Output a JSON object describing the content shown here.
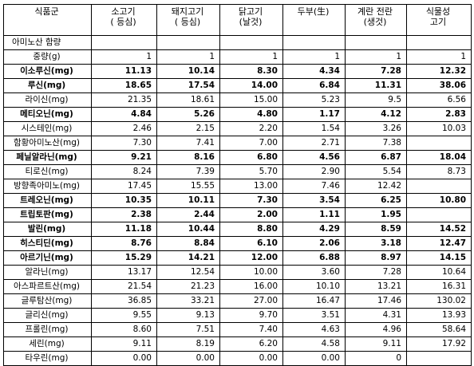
{
  "header": {
    "group": "식품군",
    "columns": [
      {
        "line1": "소고기",
        "line2": "( 등심)"
      },
      {
        "line1": "돼지고기",
        "line2": "( 등심)"
      },
      {
        "line1": "닭고기",
        "line2": "(날것)"
      },
      {
        "line1": "두부(生)",
        "line2": ""
      },
      {
        "line1": "계란 전란",
        "line2": "(생것)"
      },
      {
        "line1": "식물성",
        "line2": "고기"
      }
    ]
  },
  "section_label": "아미노산 함량",
  "rows": [
    {
      "name": "중량(g)",
      "bold": false,
      "values": [
        "1",
        "1",
        "1",
        "1",
        "1",
        "1"
      ]
    },
    {
      "name": "이소루신(mg)",
      "bold": true,
      "values": [
        "11.13",
        "10.14",
        "8.30",
        "4.34",
        "7.28",
        "12.32"
      ]
    },
    {
      "name": "루신(mg)",
      "bold": true,
      "values": [
        "18.65",
        "17.54",
        "14.00",
        "6.84",
        "11.31",
        "38.06"
      ]
    },
    {
      "name": "라이신(mg)",
      "bold": false,
      "values": [
        "21.35",
        "18.61",
        "15.00",
        "5.23",
        "9.5",
        "6.56"
      ]
    },
    {
      "name": "메티오닌(mg)",
      "bold": true,
      "values": [
        "4.84",
        "5.26",
        "4.80",
        "1.17",
        "4.12",
        "2.83"
      ]
    },
    {
      "name": "시스테인(mg)",
      "bold": false,
      "values": [
        "2.46",
        "2.15",
        "2.20",
        "1.54",
        "3.26",
        "10.03"
      ]
    },
    {
      "name": "함황아미노산(mg)",
      "bold": false,
      "values": [
        "7.30",
        "7.41",
        "7.00",
        "2.71",
        "7.38",
        ""
      ]
    },
    {
      "name": "페닐알라닌(mg)",
      "bold": true,
      "values": [
        "9.21",
        "8.16",
        "6.80",
        "4.56",
        "6.87",
        "18.04"
      ]
    },
    {
      "name": "티로신(mg)",
      "bold": false,
      "values": [
        "8.24",
        "7.39",
        "5.70",
        "2.90",
        "5.54",
        "8.73"
      ]
    },
    {
      "name": "방향족아미노(mg)",
      "bold": false,
      "values": [
        "17.45",
        "15.55",
        "13.00",
        "7.46",
        "12.42",
        ""
      ]
    },
    {
      "name": "트레오닌(mg)",
      "bold": true,
      "values": [
        "10.35",
        "10.11",
        "7.30",
        "3.54",
        "6.25",
        "10.80"
      ]
    },
    {
      "name": "트립토판(mg)",
      "bold": true,
      "values": [
        "2.38",
        "2.44",
        "2.00",
        "1.11",
        "1.95",
        ""
      ]
    },
    {
      "name": "발린(mg)",
      "bold": true,
      "values": [
        "11.18",
        "10.44",
        "8.80",
        "4.29",
        "8.59",
        "14.52"
      ]
    },
    {
      "name": "히스티딘(mg)",
      "bold": true,
      "values": [
        "8.76",
        "8.84",
        "6.10",
        "2.06",
        "3.18",
        "12.47"
      ]
    },
    {
      "name": "아르기닌(mg)",
      "bold": true,
      "values": [
        "15.29",
        "14.21",
        "12.00",
        "6.88",
        "8.97",
        "14.15"
      ]
    },
    {
      "name": "알라닌(mg)",
      "bold": false,
      "values": [
        "13.17",
        "12.54",
        "10.00",
        "3.60",
        "7.28",
        "10.64"
      ]
    },
    {
      "name": "아스파르트산(mg)",
      "bold": false,
      "values": [
        "21.54",
        "21.23",
        "16.00",
        "10.10",
        "13.21",
        "16.31"
      ]
    },
    {
      "name": "글루탐산(mg)",
      "bold": false,
      "values": [
        "36.85",
        "33.21",
        "27.00",
        "16.47",
        "17.46",
        "130.02"
      ]
    },
    {
      "name": "글리신(mg)",
      "bold": false,
      "values": [
        "9.55",
        "9.13",
        "9.70",
        "3.51",
        "4.31",
        "13.93"
      ]
    },
    {
      "name": "프롤린(mg)",
      "bold": false,
      "values": [
        "8.60",
        "7.51",
        "7.40",
        "4.63",
        "4.96",
        "58.64"
      ]
    },
    {
      "name": "세린(mg)",
      "bold": false,
      "values": [
        "9.11",
        "8.19",
        "6.20",
        "4.58",
        "9.11",
        "17.92"
      ]
    },
    {
      "name": "타우린(mg)",
      "bold": false,
      "values": [
        "0.00",
        "0.00",
        "0.00",
        "0.00",
        "0",
        ""
      ]
    }
  ]
}
